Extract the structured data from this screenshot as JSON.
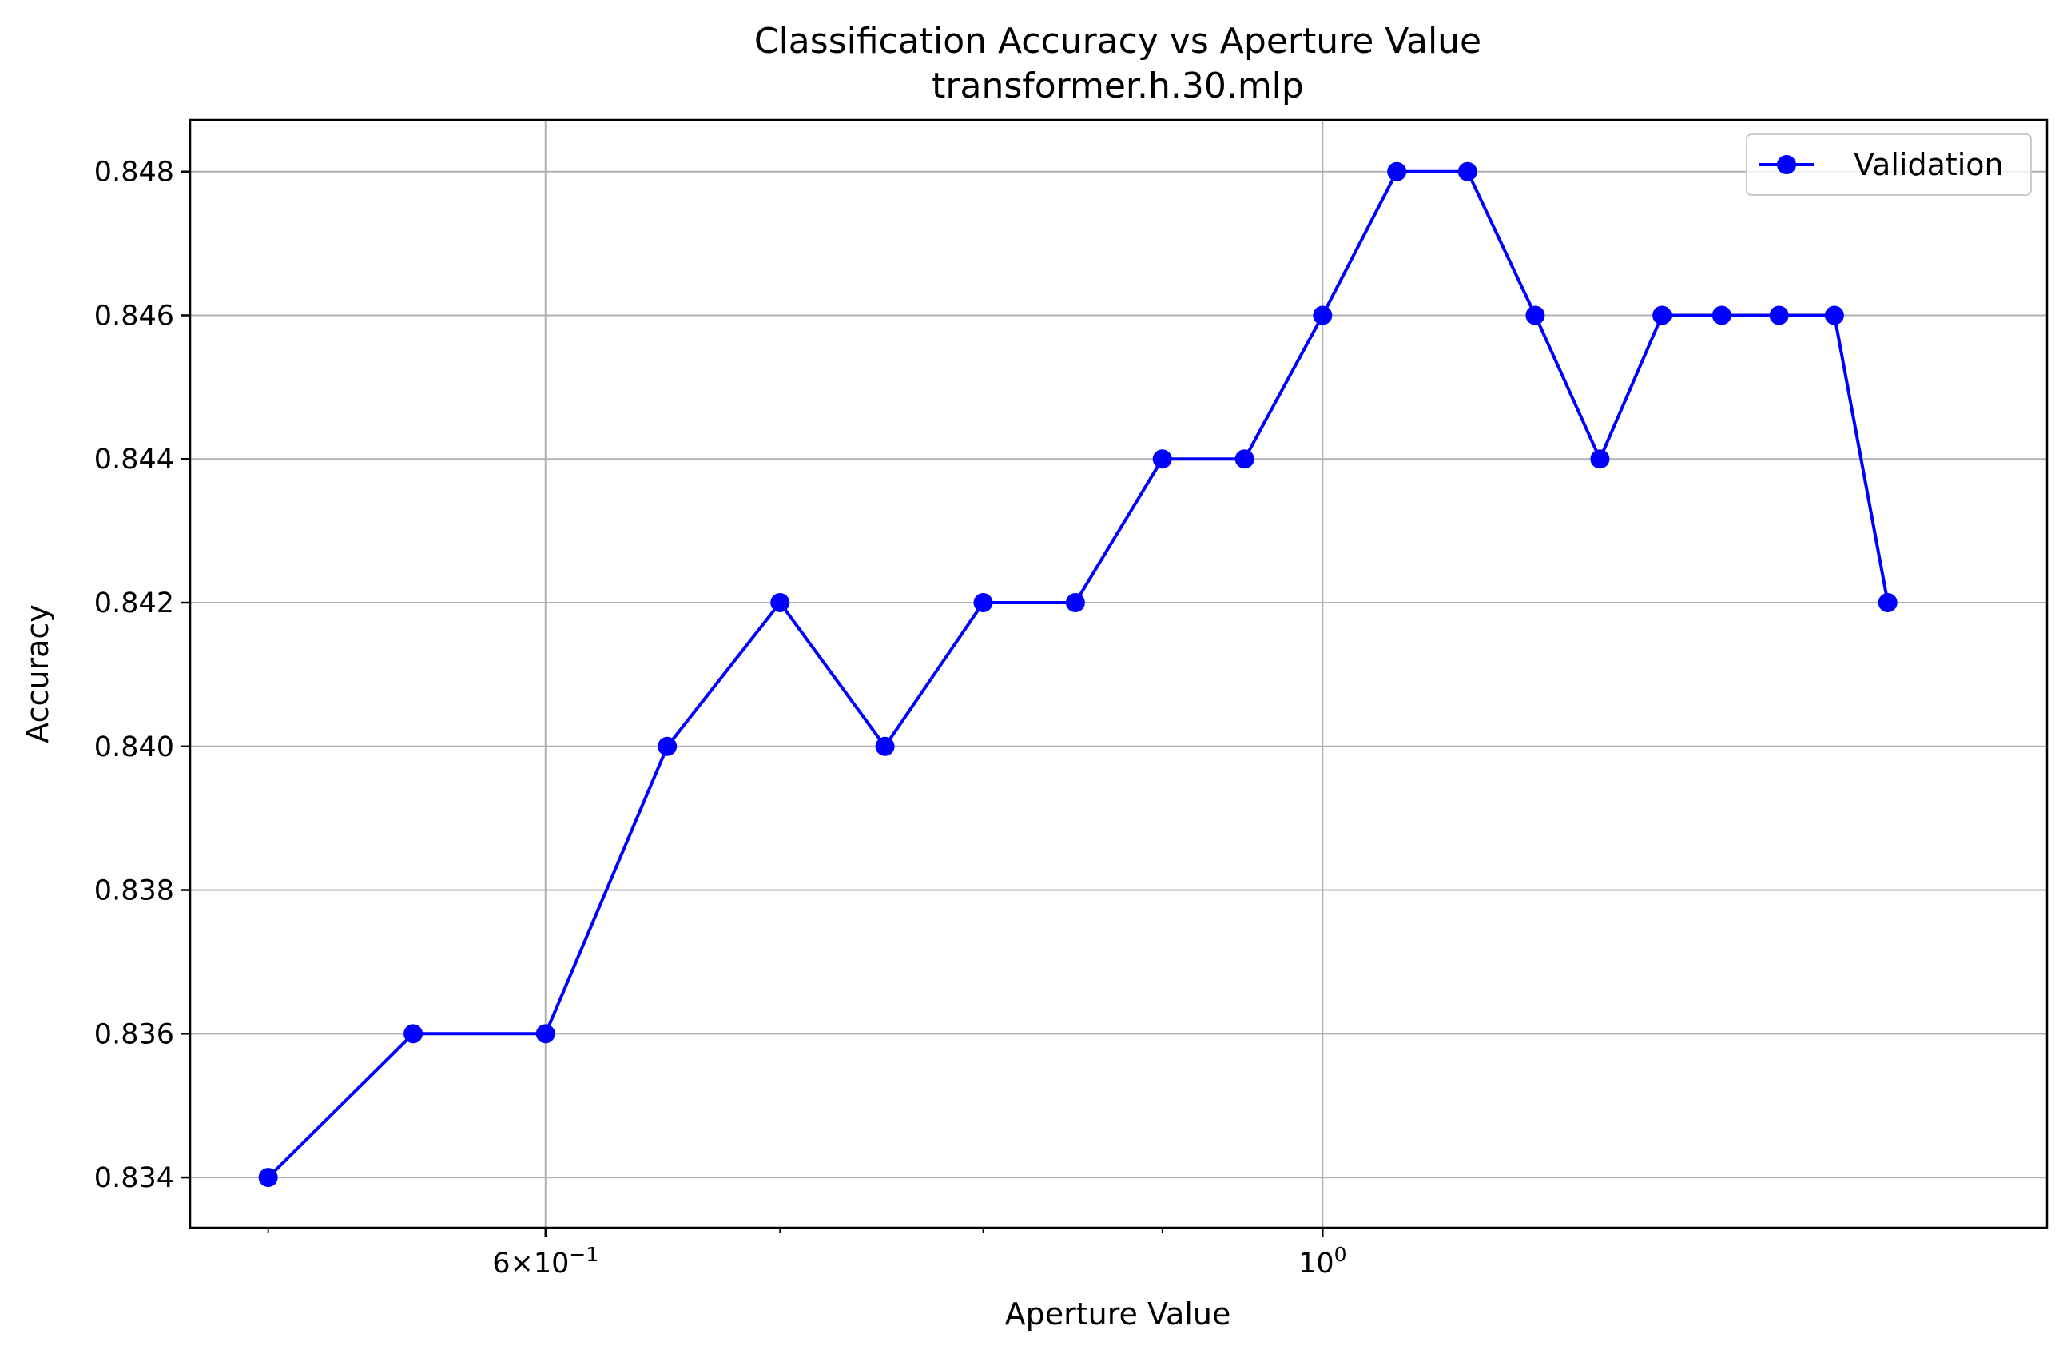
{
  "chart_data": {
    "type": "line",
    "title": "Classification Accuracy vs Aperture Value",
    "subtitle": "transformer.h.30.mlp",
    "xlabel": "Aperture Value",
    "ylabel": "Accuracy",
    "xscale": "log",
    "xlim": [
      0.475,
      1.61
    ],
    "ylim": [
      0.8333,
      0.84872
    ],
    "x_major_ticks": [
      {
        "value": 0.6,
        "label_base": "6×10",
        "label_exp": "−1"
      },
      {
        "value": 1.0,
        "label_base": "10",
        "label_exp": "0"
      }
    ],
    "x_minor_ticks": [
      0.5,
      0.7,
      0.8,
      0.9
    ],
    "y_ticks": [
      {
        "value": 0.834,
        "label": "0.834"
      },
      {
        "value": 0.836,
        "label": "0.836"
      },
      {
        "value": 0.838,
        "label": "0.838"
      },
      {
        "value": 0.84,
        "label": "0.840"
      },
      {
        "value": 0.842,
        "label": "0.842"
      },
      {
        "value": 0.844,
        "label": "0.844"
      },
      {
        "value": 0.846,
        "label": "0.846"
      },
      {
        "value": 0.848,
        "label": "0.848"
      }
    ],
    "grid": true,
    "legend_position": "top-right",
    "series": [
      {
        "name": "Validation",
        "color": "#0000ff",
        "marker": "circle",
        "x": [
          0.5,
          0.55,
          0.6,
          0.65,
          0.7,
          0.75,
          0.8,
          0.85,
          0.9,
          0.95,
          1.0,
          1.05,
          1.1,
          1.15,
          1.2,
          1.25,
          1.3,
          1.35,
          1.4,
          1.45
        ],
        "y": [
          0.834,
          0.836,
          0.836,
          0.84,
          0.842,
          0.84,
          0.842,
          0.842,
          0.844,
          0.844,
          0.846,
          0.848,
          0.848,
          0.846,
          0.844,
          0.846,
          0.846,
          0.846,
          0.846,
          0.842
        ]
      }
    ]
  }
}
